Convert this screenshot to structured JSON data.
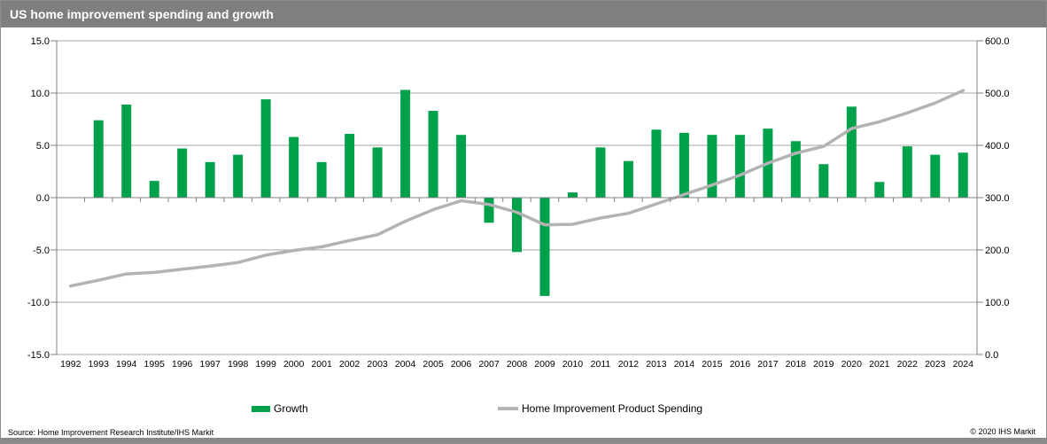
{
  "title": "US home improvement spending and growth",
  "legend": [
    {
      "label": "Growth",
      "color": "#00a14b",
      "type": "bar"
    },
    {
      "label": "Home Improvement Product Spending",
      "color": "#b3b3b3",
      "type": "line"
    }
  ],
  "footer": {
    "source": "Source:  Home Improvement Research Institute/IHS Markit",
    "copyright": "© 2020  IHS Markit"
  },
  "colors": {
    "bar_green": "#00a14b",
    "line_gray": "#b3b3b3",
    "titlebar_gray": "#7f7f7f",
    "gridline_gray": "#a6a6a6",
    "axis_gray": "#808080"
  },
  "chart_data": {
    "type": "bar",
    "combo": "bar+line dual axis",
    "title": "US home improvement spending and growth",
    "categories": [
      "1992",
      "1993",
      "1994",
      "1995",
      "1996",
      "1997",
      "1998",
      "1999",
      "2000",
      "2001",
      "2002",
      "2003",
      "2004",
      "2005",
      "2006",
      "2007",
      "2008",
      "2009",
      "2010",
      "2011",
      "2012",
      "2013",
      "2014",
      "2015",
      "2016",
      "2017",
      "2018",
      "2019",
      "2020",
      "2021",
      "2022",
      "2023",
      "2024"
    ],
    "series": [
      {
        "name": "Growth",
        "type": "bar",
        "axis": "left",
        "color": "#00a14b",
        "values": [
          null,
          7.4,
          8.9,
          1.6,
          4.7,
          3.4,
          4.1,
          9.4,
          5.8,
          3.4,
          6.1,
          4.8,
          10.3,
          8.3,
          6.0,
          -2.4,
          -5.2,
          -9.4,
          0.5,
          4.8,
          3.5,
          6.5,
          6.2,
          6.0,
          6.0,
          6.6,
          5.4,
          3.2,
          8.7,
          1.5,
          4.9,
          4.1,
          4.3
        ]
      },
      {
        "name": "Home Improvement Product Spending",
        "type": "line",
        "axis": "right",
        "color": "#b3b3b3",
        "values": [
          131,
          142,
          154,
          157,
          163,
          169,
          176,
          190,
          199,
          206,
          218,
          229,
          255,
          277,
          294,
          287,
          272,
          248,
          249,
          261,
          270,
          288,
          306,
          324,
          343,
          366,
          385,
          398,
          432,
          445,
          462,
          481,
          505
        ]
      }
    ],
    "left_axis": {
      "range": [
        -15,
        15
      ],
      "tick_labels": [
        "15.0",
        "10.0",
        "5.0",
        "0.0",
        "-5.0",
        "-10.0",
        "-15.0"
      ]
    },
    "right_axis": {
      "range": [
        0,
        600
      ],
      "tick_labels": [
        "600.0",
        "500.0",
        "400.0",
        "300.0",
        "200.0",
        "100.0",
        "0.0"
      ]
    },
    "grid": true,
    "legend_position": "bottom"
  }
}
